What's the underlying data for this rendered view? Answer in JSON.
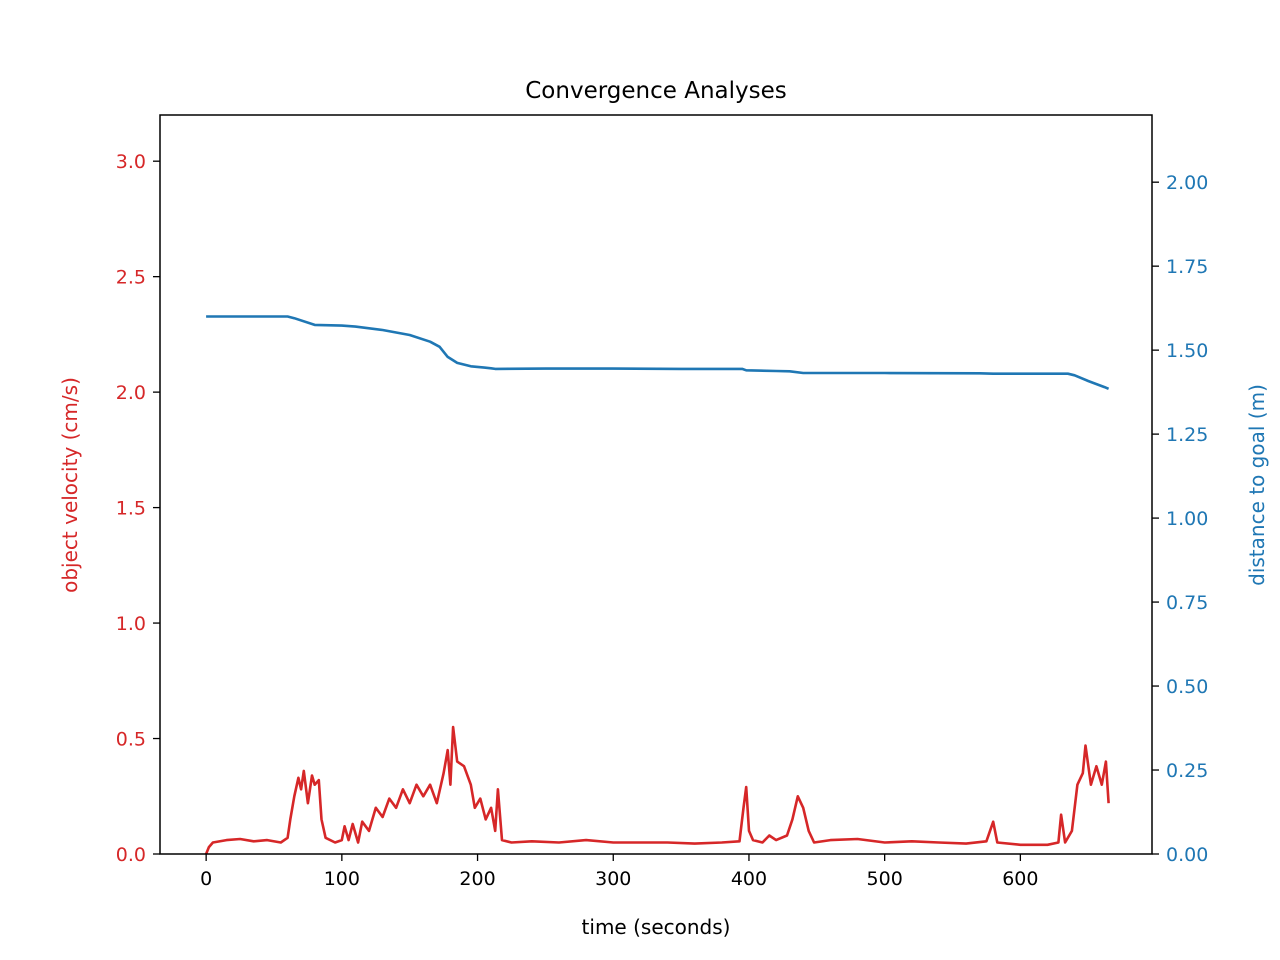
{
  "chart_data": {
    "type": "line",
    "title": "Convergence Analyses",
    "xlabel": "time (seconds)",
    "xlim": [
      -34,
      697
    ],
    "x_ticks": [
      0,
      100,
      200,
      300,
      400,
      500,
      600
    ],
    "left_axis": {
      "label": "object velocity (cm/s)",
      "color": "#d62728",
      "ylim": [
        0,
        3.2
      ],
      "ticks": [
        "0.0",
        "0.5",
        "1.0",
        "1.5",
        "2.0",
        "2.5",
        "3.0"
      ]
    },
    "right_axis": {
      "label": "distance to goal (m)",
      "color": "#1f77b4",
      "ylim": [
        0,
        2.2
      ],
      "ticks": [
        "0.00",
        "0.25",
        "0.50",
        "0.75",
        "1.00",
        "1.25",
        "1.50",
        "1.75",
        "2.00"
      ]
    },
    "grid": false,
    "series": [
      {
        "axis": "left",
        "color": "#d62728",
        "points": [
          [
            0,
            0.0
          ],
          [
            2,
            0.03
          ],
          [
            5,
            0.05
          ],
          [
            15,
            0.06
          ],
          [
            25,
            0.065
          ],
          [
            35,
            0.055
          ],
          [
            45,
            0.06
          ],
          [
            55,
            0.05
          ],
          [
            60,
            0.07
          ],
          [
            62,
            0.15
          ],
          [
            65,
            0.25
          ],
          [
            68,
            0.33
          ],
          [
            70,
            0.28
          ],
          [
            72,
            0.36
          ],
          [
            75,
            0.22
          ],
          [
            78,
            0.34
          ],
          [
            80,
            0.3
          ],
          [
            83,
            0.32
          ],
          [
            85,
            0.15
          ],
          [
            88,
            0.07
          ],
          [
            95,
            0.05
          ],
          [
            100,
            0.06
          ],
          [
            102,
            0.12
          ],
          [
            105,
            0.06
          ],
          [
            108,
            0.13
          ],
          [
            112,
            0.05
          ],
          [
            115,
            0.14
          ],
          [
            120,
            0.1
          ],
          [
            125,
            0.2
          ],
          [
            130,
            0.16
          ],
          [
            135,
            0.24
          ],
          [
            140,
            0.2
          ],
          [
            145,
            0.28
          ],
          [
            150,
            0.22
          ],
          [
            155,
            0.3
          ],
          [
            160,
            0.25
          ],
          [
            165,
            0.3
          ],
          [
            170,
            0.22
          ],
          [
            175,
            0.35
          ],
          [
            178,
            0.45
          ],
          [
            180,
            0.3
          ],
          [
            182,
            0.55
          ],
          [
            185,
            0.4
          ],
          [
            190,
            0.38
          ],
          [
            195,
            0.3
          ],
          [
            198,
            0.2
          ],
          [
            202,
            0.24
          ],
          [
            206,
            0.15
          ],
          [
            210,
            0.2
          ],
          [
            213,
            0.1
          ],
          [
            215,
            0.28
          ],
          [
            218,
            0.06
          ],
          [
            225,
            0.05
          ],
          [
            240,
            0.055
          ],
          [
            260,
            0.05
          ],
          [
            280,
            0.06
          ],
          [
            300,
            0.05
          ],
          [
            320,
            0.05
          ],
          [
            340,
            0.05
          ],
          [
            360,
            0.045
          ],
          [
            380,
            0.05
          ],
          [
            393,
            0.055
          ],
          [
            396,
            0.2
          ],
          [
            398,
            0.29
          ],
          [
            400,
            0.1
          ],
          [
            403,
            0.06
          ],
          [
            410,
            0.05
          ],
          [
            415,
            0.08
          ],
          [
            420,
            0.06
          ],
          [
            428,
            0.08
          ],
          [
            432,
            0.15
          ],
          [
            436,
            0.25
          ],
          [
            440,
            0.2
          ],
          [
            444,
            0.1
          ],
          [
            448,
            0.05
          ],
          [
            460,
            0.06
          ],
          [
            480,
            0.065
          ],
          [
            500,
            0.05
          ],
          [
            520,
            0.055
          ],
          [
            540,
            0.05
          ],
          [
            560,
            0.045
          ],
          [
            575,
            0.055
          ],
          [
            580,
            0.14
          ],
          [
            583,
            0.05
          ],
          [
            600,
            0.04
          ],
          [
            620,
            0.04
          ],
          [
            628,
            0.05
          ],
          [
            630,
            0.17
          ],
          [
            633,
            0.05
          ],
          [
            638,
            0.1
          ],
          [
            642,
            0.3
          ],
          [
            646,
            0.35
          ],
          [
            648,
            0.47
          ],
          [
            652,
            0.3
          ],
          [
            656,
            0.38
          ],
          [
            660,
            0.3
          ],
          [
            663,
            0.4
          ],
          [
            665,
            0.22
          ]
        ]
      },
      {
        "axis": "right",
        "color": "#1f77b4",
        "points": [
          [
            0,
            1.6
          ],
          [
            60,
            1.6
          ],
          [
            65,
            1.595
          ],
          [
            80,
            1.575
          ],
          [
            100,
            1.573
          ],
          [
            110,
            1.57
          ],
          [
            130,
            1.56
          ],
          [
            150,
            1.545
          ],
          [
            165,
            1.525
          ],
          [
            172,
            1.51
          ],
          [
            178,
            1.48
          ],
          [
            185,
            1.462
          ],
          [
            195,
            1.452
          ],
          [
            205,
            1.448
          ],
          [
            210,
            1.446
          ],
          [
            213,
            1.444
          ],
          [
            250,
            1.445
          ],
          [
            300,
            1.445
          ],
          [
            350,
            1.444
          ],
          [
            395,
            1.444
          ],
          [
            398,
            1.44
          ],
          [
            420,
            1.438
          ],
          [
            430,
            1.437
          ],
          [
            440,
            1.432
          ],
          [
            500,
            1.432
          ],
          [
            570,
            1.431
          ],
          [
            580,
            1.43
          ],
          [
            600,
            1.43
          ],
          [
            635,
            1.43
          ],
          [
            640,
            1.425
          ],
          [
            650,
            1.408
          ],
          [
            662,
            1.39
          ],
          [
            665,
            1.385
          ]
        ]
      }
    ]
  }
}
